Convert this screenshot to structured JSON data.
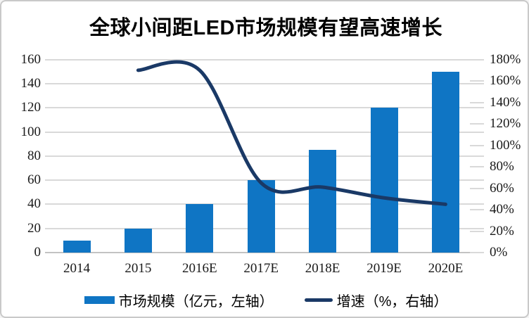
{
  "title": "全球小间距LED市场规模有望高速增长",
  "chart_data": {
    "type": "bar",
    "subtype": "combo-bar-line-dual-axis",
    "categories": [
      "2014",
      "2015",
      "2016E",
      "2017E",
      "2018E",
      "2019E",
      "2020E"
    ],
    "series": [
      {
        "name": "市场规模（亿元，左轴）",
        "type": "bar",
        "axis": "left",
        "color": "#0f75c4",
        "values": [
          10,
          20,
          40,
          60,
          85,
          120,
          150
        ]
      },
      {
        "name": "增速（%，右轴）",
        "type": "line",
        "axis": "right",
        "color": "#1a3966",
        "smooth": true,
        "values": [
          null,
          170,
          170,
          65,
          61,
          51,
          45
        ]
      }
    ],
    "title": "全球小间距LED市场规模有望高速增长",
    "xlabel": "",
    "ylabel_left": "",
    "ylabel_right": "",
    "left_axis": {
      "min": 0,
      "max": 160,
      "step": 20,
      "ticks": [
        "0",
        "20",
        "40",
        "60",
        "80",
        "100",
        "120",
        "140",
        "160"
      ]
    },
    "right_axis": {
      "min": 0,
      "max": 180,
      "step": 20,
      "ticks": [
        "0%",
        "20%",
        "40%",
        "60%",
        "80%",
        "100%",
        "120%",
        "140%",
        "160%",
        "180%"
      ]
    },
    "grid": true,
    "gridline_color": "#d9d9d9",
    "legend_position": "bottom"
  }
}
